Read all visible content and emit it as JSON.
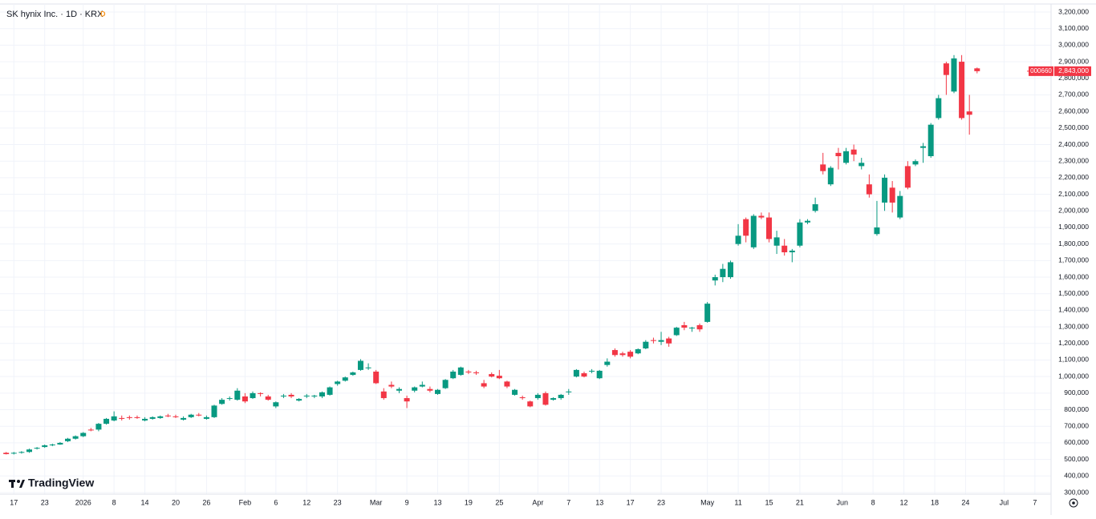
{
  "chart_data": {
    "type": "candlestick",
    "title": "SK hynix Inc. · 1D · KRX",
    "badge": "D",
    "watermark": "TradingView",
    "symbol_code": "000660",
    "last_price": {
      "value": 2843000,
      "label": "2,843,000"
    },
    "up_color": "#089981",
    "down_color": "#f23645",
    "grid": true,
    "xlim": [
      -0.8,
      135.6
    ],
    "ylim": [
      300000,
      3200000
    ],
    "xticks": [
      {
        "value": 1,
        "label": "17"
      },
      {
        "value": 5,
        "label": "23"
      },
      {
        "value": 10,
        "label": "2026"
      },
      {
        "value": 14,
        "label": "8"
      },
      {
        "value": 18,
        "label": "14"
      },
      {
        "value": 22,
        "label": "20"
      },
      {
        "value": 26,
        "label": "26"
      },
      {
        "value": 31,
        "label": "Feb"
      },
      {
        "value": 35,
        "label": "6"
      },
      {
        "value": 39,
        "label": "12"
      },
      {
        "value": 43,
        "label": "23"
      },
      {
        "value": 48,
        "label": "Mar"
      },
      {
        "value": 52,
        "label": "9"
      },
      {
        "value": 56,
        "label": "13"
      },
      {
        "value": 60,
        "label": "19"
      },
      {
        "value": 64,
        "label": "25"
      },
      {
        "value": 69,
        "label": "Apr"
      },
      {
        "value": 73,
        "label": "7"
      },
      {
        "value": 77,
        "label": "13"
      },
      {
        "value": 81,
        "label": "17"
      },
      {
        "value": 85,
        "label": "23"
      },
      {
        "value": 91,
        "label": "May"
      },
      {
        "value": 95,
        "label": "11"
      },
      {
        "value": 99,
        "label": "15"
      },
      {
        "value": 103,
        "label": "21"
      },
      {
        "value": 108.5,
        "label": "Jun"
      },
      {
        "value": 112.5,
        "label": "8"
      },
      {
        "value": 116.5,
        "label": "12"
      },
      {
        "value": 120.5,
        "label": "18"
      },
      {
        "value": 124.5,
        "label": "24"
      },
      {
        "value": 129.5,
        "label": "Jul"
      },
      {
        "value": 133.5,
        "label": "7"
      }
    ],
    "yticks": [
      {
        "value": 300000,
        "label": "300,000"
      },
      {
        "value": 400000,
        "label": "400,000"
      },
      {
        "value": 500000,
        "label": "500,000"
      },
      {
        "value": 600000,
        "label": "600,000"
      },
      {
        "value": 700000,
        "label": "700,000"
      },
      {
        "value": 800000,
        "label": "800,000"
      },
      {
        "value": 900000,
        "label": "900,000"
      },
      {
        "value": 1000000,
        "label": "1,000,000"
      },
      {
        "value": 1100000,
        "label": "1,100,000"
      },
      {
        "value": 1200000,
        "label": "1,200,000"
      },
      {
        "value": 1300000,
        "label": "1,300,000"
      },
      {
        "value": 1400000,
        "label": "1,400,000"
      },
      {
        "value": 1500000,
        "label": "1,500,000"
      },
      {
        "value": 1600000,
        "label": "1,600,000"
      },
      {
        "value": 1700000,
        "label": "1,700,000"
      },
      {
        "value": 1800000,
        "label": "1,800,000"
      },
      {
        "value": 1900000,
        "label": "1,900,000"
      },
      {
        "value": 2000000,
        "label": "2,000,000"
      },
      {
        "value": 2100000,
        "label": "2,100,000"
      },
      {
        "value": 2200000,
        "label": "2,200,000"
      },
      {
        "value": 2300000,
        "label": "2,300,000"
      },
      {
        "value": 2400000,
        "label": "2,400,000"
      },
      {
        "value": 2500000,
        "label": "2,500,000"
      },
      {
        "value": 2600000,
        "label": "2,600,000"
      },
      {
        "value": 2700000,
        "label": "2,700,000"
      },
      {
        "value": 2800000,
        "label": "2,800,000"
      },
      {
        "value": 2900000,
        "label": "2,900,000"
      },
      {
        "value": 3000000,
        "label": "3,000,000"
      },
      {
        "value": 3100000,
        "label": "3,100,000"
      },
      {
        "value": 3200000,
        "label": "3,200,000"
      }
    ],
    "x": [
      0,
      1,
      2,
      3,
      4,
      5,
      6,
      7,
      8,
      9,
      10,
      11,
      12,
      13,
      14,
      15,
      16,
      17,
      18,
      19,
      20,
      21,
      22,
      23,
      24,
      25,
      26,
      27,
      28,
      29,
      30,
      31,
      32,
      33,
      34,
      35,
      36,
      37,
      38,
      39,
      40,
      41,
      42,
      43,
      44,
      45,
      46,
      47,
      48,
      49,
      50,
      51,
      52,
      53,
      54,
      55,
      56,
      57,
      58,
      59,
      60,
      61,
      62,
      63,
      64,
      65,
      66,
      67,
      68,
      69,
      70,
      71,
      72,
      73,
      74,
      75,
      76,
      77,
      78,
      79,
      80,
      81,
      82,
      83,
      84,
      85,
      86,
      87,
      88,
      89,
      90,
      91,
      92,
      93,
      94,
      95,
      96,
      97,
      98,
      99,
      100,
      101,
      102,
      103,
      104,
      105,
      106,
      107,
      108,
      109,
      110,
      111,
      112,
      113,
      114,
      115,
      116,
      117,
      118,
      119,
      120,
      121,
      122,
      123,
      124,
      125,
      126
    ],
    "open": [
      540000,
      535000,
      540000,
      545000,
      565000,
      575000,
      585000,
      590000,
      610000,
      625000,
      640000,
      680000,
      680000,
      715000,
      735000,
      750000,
      755000,
      755000,
      735000,
      745000,
      750000,
      765000,
      760000,
      740000,
      755000,
      770000,
      745000,
      755000,
      835000,
      870000,
      860000,
      880000,
      870000,
      900000,
      880000,
      820000,
      880000,
      890000,
      855000,
      880000,
      880000,
      880000,
      890000,
      955000,
      975000,
      1010000,
      1040000,
      1050000,
      1030000,
      910000,
      950000,
      915000,
      870000,
      915000,
      940000,
      925000,
      895000,
      930000,
      990000,
      1010000,
      1030000,
      1025000,
      960000,
      1015000,
      1005000,
      970000,
      890000,
      875000,
      850000,
      870000,
      900000,
      860000,
      870000,
      905000,
      1000000,
      1020000,
      1030000,
      990000,
      1070000,
      1160000,
      1140000,
      1150000,
      1140000,
      1170000,
      1220000,
      1210000,
      1230000,
      1250000,
      1310000,
      1290000,
      1310000,
      1330000,
      1580000,
      1600000,
      1600000,
      1800000,
      1950000,
      1780000,
      1970000,
      1960000,
      1790000,
      1790000,
      1750000,
      1790000,
      1930000,
      2000000,
      2280000,
      2160000,
      2350000,
      2290000,
      2370000,
      2270000,
      2160000,
      1860000,
      2050000,
      2140000,
      1960000,
      2270000,
      2280000,
      2380000,
      2330000,
      2560000,
      2890000,
      2720000,
      2900000,
      2600000,
      2860000
    ],
    "high": [
      545000,
      545000,
      550000,
      565000,
      575000,
      590000,
      595000,
      605000,
      630000,
      645000,
      665000,
      690000,
      720000,
      750000,
      790000,
      765000,
      765000,
      765000,
      755000,
      760000,
      765000,
      775000,
      770000,
      760000,
      775000,
      780000,
      765000,
      830000,
      870000,
      880000,
      930000,
      900000,
      910000,
      905000,
      890000,
      850000,
      895000,
      900000,
      870000,
      895000,
      890000,
      910000,
      940000,
      975000,
      1000000,
      1030000,
      1105000,
      1080000,
      1040000,
      930000,
      970000,
      935000,
      885000,
      940000,
      970000,
      940000,
      925000,
      985000,
      1040000,
      1060000,
      1040000,
      1035000,
      980000,
      1025000,
      1040000,
      975000,
      925000,
      885000,
      855000,
      900000,
      910000,
      875000,
      895000,
      925000,
      1045000,
      1030000,
      1045000,
      1040000,
      1110000,
      1170000,
      1150000,
      1160000,
      1170000,
      1220000,
      1235000,
      1270000,
      1240000,
      1300000,
      1330000,
      1300000,
      1320000,
      1450000,
      1615000,
      1680000,
      1700000,
      1920000,
      1960000,
      1980000,
      1990000,
      1990000,
      1880000,
      1830000,
      1770000,
      1950000,
      1950000,
      2080000,
      2350000,
      2270000,
      2380000,
      2380000,
      2400000,
      2320000,
      2220000,
      2060000,
      2220000,
      2180000,
      2120000,
      2300000,
      2310000,
      2410000,
      2530000,
      2700000,
      2900000,
      2940000,
      2940000,
      2700000,
      2865000
    ],
    "low": [
      530000,
      530000,
      535000,
      540000,
      560000,
      570000,
      580000,
      588000,
      605000,
      620000,
      635000,
      670000,
      670000,
      710000,
      730000,
      735000,
      740000,
      745000,
      730000,
      740000,
      745000,
      755000,
      750000,
      735000,
      750000,
      760000,
      740000,
      750000,
      830000,
      855000,
      855000,
      840000,
      865000,
      880000,
      855000,
      810000,
      870000,
      870000,
      850000,
      870000,
      870000,
      870000,
      885000,
      945000,
      970000,
      1005000,
      1035000,
      1040000,
      955000,
      860000,
      930000,
      900000,
      810000,
      905000,
      935000,
      905000,
      890000,
      925000,
      985000,
      1005000,
      1015000,
      1010000,
      930000,
      995000,
      985000,
      930000,
      885000,
      860000,
      815000,
      860000,
      825000,
      855000,
      860000,
      890000,
      995000,
      995000,
      1020000,
      985000,
      1060000,
      1120000,
      1120000,
      1110000,
      1135000,
      1165000,
      1200000,
      1190000,
      1180000,
      1245000,
      1280000,
      1270000,
      1270000,
      1325000,
      1550000,
      1570000,
      1590000,
      1790000,
      1810000,
      1770000,
      1950000,
      1810000,
      1740000,
      1730000,
      1690000,
      1780000,
      1920000,
      1990000,
      2220000,
      2150000,
      2250000,
      2280000,
      2300000,
      2250000,
      2080000,
      1850000,
      2000000,
      1990000,
      1950000,
      2130000,
      2270000,
      2290000,
      2320000,
      2550000,
      2700000,
      2710000,
      2550000,
      2460000,
      2830000
    ],
    "close": [
      532000,
      540000,
      545000,
      560000,
      570000,
      585000,
      590000,
      600000,
      625000,
      640000,
      660000,
      675000,
      715000,
      745000,
      760000,
      745000,
      750000,
      750000,
      745000,
      755000,
      760000,
      760000,
      755000,
      750000,
      770000,
      765000,
      755000,
      825000,
      860000,
      870000,
      915000,
      850000,
      900000,
      895000,
      860000,
      845000,
      885000,
      880000,
      865000,
      885000,
      885000,
      905000,
      935000,
      970000,
      995000,
      1025000,
      1095000,
      1055000,
      960000,
      870000,
      940000,
      925000,
      850000,
      935000,
      950000,
      915000,
      920000,
      980000,
      1030000,
      1055000,
      1025000,
      1020000,
      940000,
      1000000,
      990000,
      940000,
      920000,
      870000,
      820000,
      890000,
      830000,
      870000,
      890000,
      910000,
      1040000,
      1000000,
      1035000,
      1035000,
      1090000,
      1130000,
      1130000,
      1120000,
      1165000,
      1210000,
      1215000,
      1220000,
      1200000,
      1295000,
      1295000,
      1295000,
      1285000,
      1440000,
      1600000,
      1650000,
      1690000,
      1850000,
      1850000,
      1970000,
      1960000,
      1830000,
      1840000,
      1750000,
      1760000,
      1930000,
      1940000,
      2040000,
      2240000,
      2260000,
      2330000,
      2360000,
      2340000,
      2290000,
      2100000,
      1900000,
      2200000,
      2050000,
      2090000,
      2140000,
      2300000,
      2390000,
      2520000,
      2680000,
      2820000,
      2920000,
      2560000,
      2580000,
      2843000
    ]
  }
}
